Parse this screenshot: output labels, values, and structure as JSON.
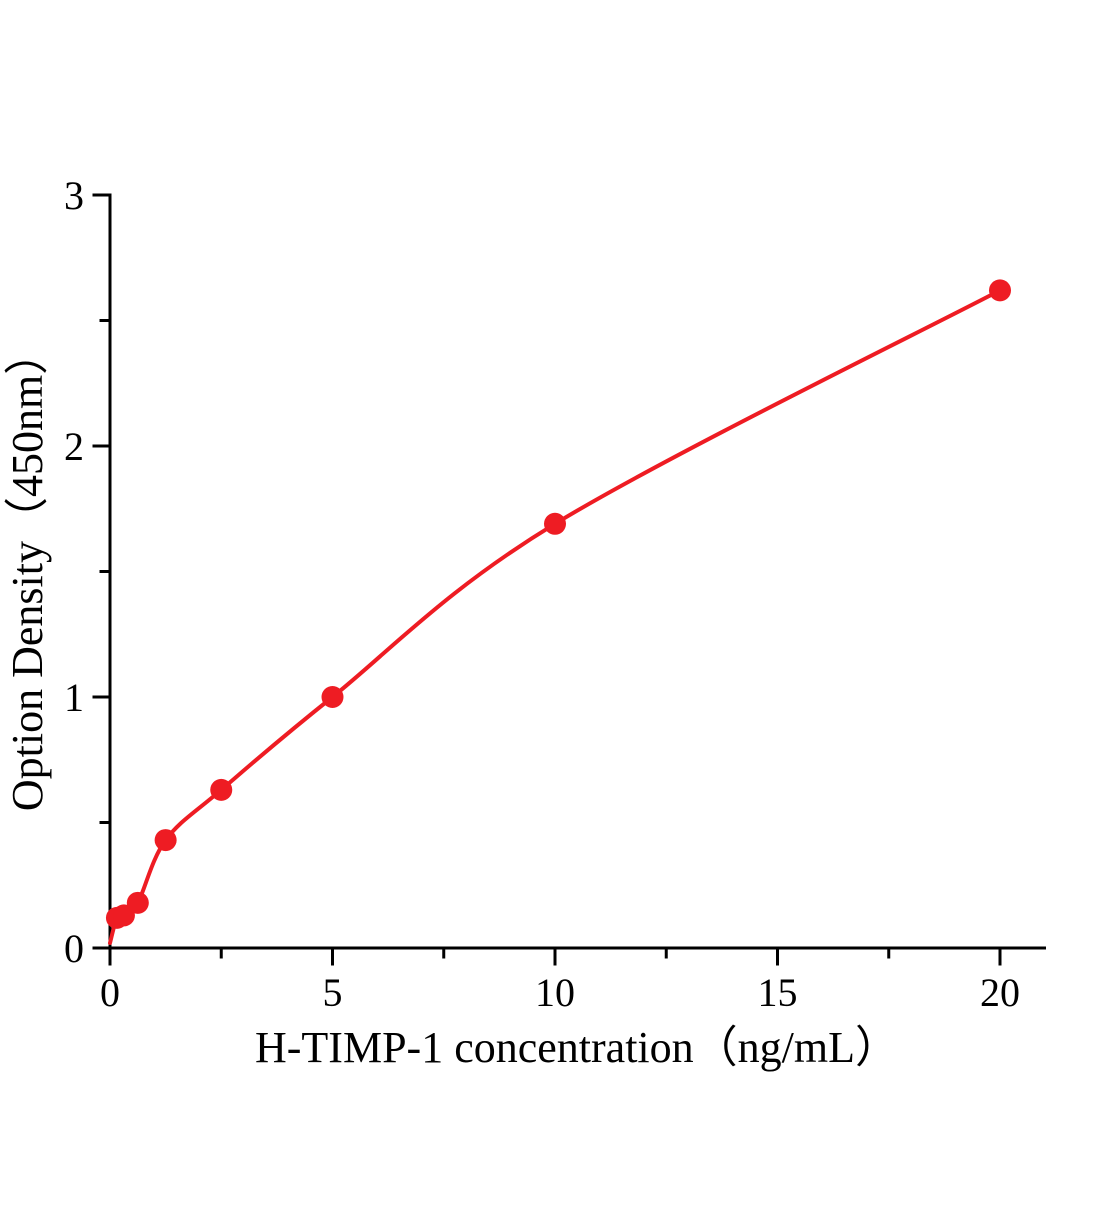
{
  "chart_data": {
    "type": "scatter",
    "title": "",
    "xlabel": "H-TIMP-1 concentration（ng/mL）",
    "ylabel": "Option Density（450nm）",
    "x": [
      0.156,
      0.313,
      0.625,
      1.25,
      2.5,
      5,
      10,
      20
    ],
    "y": [
      0.12,
      0.13,
      0.18,
      0.43,
      0.63,
      1.0,
      1.69,
      2.62
    ],
    "xlim": [
      0,
      21
    ],
    "ylim": [
      0,
      3
    ],
    "x_major_ticks": [
      0,
      5,
      10,
      15,
      20
    ],
    "x_minor_step": 2.5,
    "y_major_ticks": [
      0,
      1,
      2,
      3
    ],
    "y_minor_step": 0.5,
    "curve": {
      "style": "smooth-fit-through-points",
      "start": [
        0,
        0.02
      ]
    },
    "grid": false,
    "legend": null,
    "marker": "circle",
    "marker_radius": 11,
    "point_color": "#ee1c23",
    "line_color": "#ee1c23",
    "axis_color": "#000000"
  }
}
